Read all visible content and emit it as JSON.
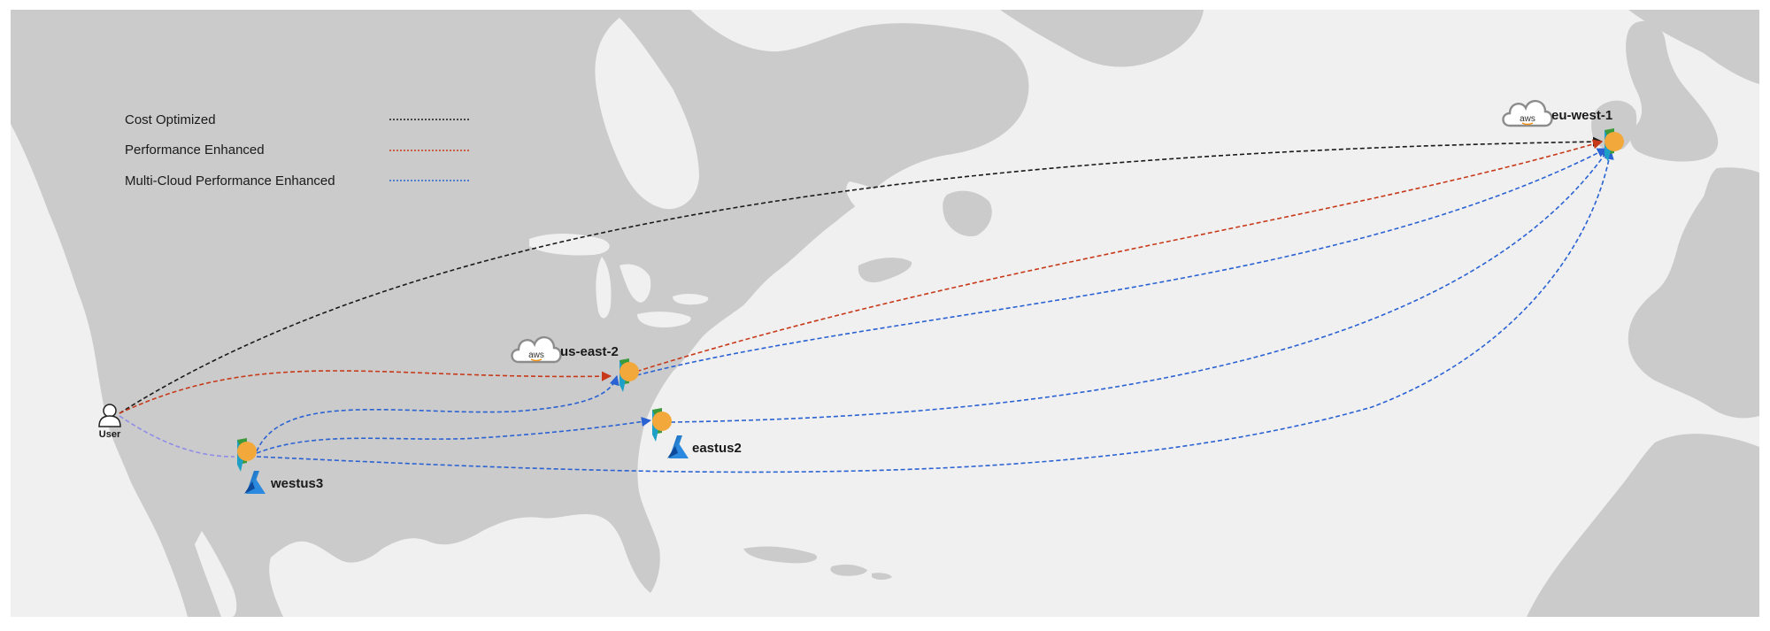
{
  "legend": {
    "items": [
      {
        "label": "Cost Optimized",
        "color": "#1a1a1a"
      },
      {
        "label": "Performance Enhanced",
        "color": "#c8391a"
      },
      {
        "label": "Multi-Cloud Performance Enhanced",
        "color": "#2a62d4"
      }
    ]
  },
  "user": {
    "label": "User"
  },
  "regions": {
    "us_east_2": {
      "label": "us-east-2",
      "provider": "aws",
      "provider_text": "aws"
    },
    "eu_west_1": {
      "label": "eu-west-1",
      "provider": "aws",
      "provider_text": "aws"
    },
    "westus3": {
      "label": "westus3",
      "provider": "azure"
    },
    "eastus2": {
      "label": "eastus2",
      "provider": "azure"
    }
  },
  "colors": {
    "ocean": "#f0f0f0",
    "land": "#cbcbcb",
    "cost": "#1a1a1a",
    "performance": "#c8391a",
    "multicloud": "#2a62d4",
    "user_link": "#8f8de8"
  },
  "icons": {
    "node": "edge-node-icon",
    "aws": "aws-cloud-icon",
    "azure": "azure-logo-icon",
    "user": "user-icon"
  }
}
